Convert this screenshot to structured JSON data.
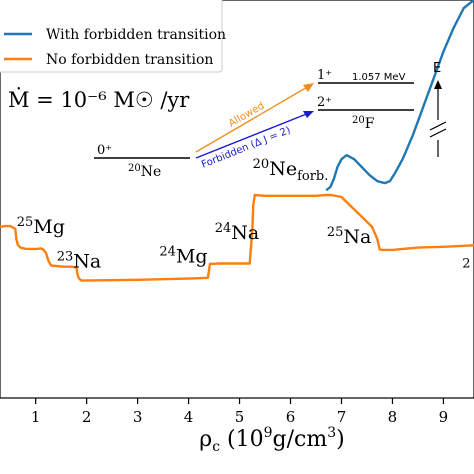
{
  "chart_data": {
    "type": "line",
    "xlabel": "ρ_c (10^9 g/cm^3)",
    "xlim": [
      0.3,
      9.6
    ],
    "ylim": [
      0.0,
      1.0
    ],
    "xticks": [
      1,
      2,
      3,
      4,
      5,
      6,
      7,
      8,
      9
    ],
    "legend_position": "top-left",
    "series": [
      {
        "name": "With forbidden transition",
        "color": "#1f77b4",
        "x": [
          6.7,
          6.78,
          6.85,
          6.92,
          7.0,
          7.1,
          7.25,
          7.4,
          7.55,
          7.7,
          7.85,
          7.95,
          8.05,
          8.2,
          8.4,
          8.6,
          8.8,
          9.0,
          9.2,
          9.4,
          9.6
        ],
        "y": [
          0.522,
          0.53,
          0.55,
          0.58,
          0.6,
          0.61,
          0.6,
          0.58,
          0.56,
          0.545,
          0.54,
          0.545,
          0.565,
          0.6,
          0.66,
          0.73,
          0.8,
          0.87,
          0.93,
          0.98,
          1.0
        ]
      },
      {
        "name": "No forbidden transition",
        "color": "#ff7f0e",
        "x": [
          0.3,
          0.4,
          0.5,
          0.6,
          0.62,
          0.65,
          0.7,
          0.8,
          1.0,
          1.1,
          1.15,
          1.2,
          1.25,
          1.3,
          1.55,
          1.7,
          1.8,
          1.82,
          1.85,
          1.9,
          3.0,
          4.0,
          4.38,
          4.4,
          4.42,
          4.6,
          5.0,
          5.2,
          5.25,
          5.27,
          5.3,
          5.5,
          6.0,
          6.5,
          6.7,
          6.8,
          7.0,
          7.2,
          7.4,
          7.6,
          7.7,
          7.75,
          7.8,
          8.0,
          8.5,
          9.0,
          9.5,
          9.6
        ],
        "y": [
          0.43,
          0.432,
          0.432,
          0.425,
          0.4,
          0.385,
          0.378,
          0.375,
          0.374,
          0.376,
          0.373,
          0.365,
          0.345,
          0.333,
          0.33,
          0.33,
          0.328,
          0.31,
          0.3,
          0.295,
          0.297,
          0.3,
          0.302,
          0.32,
          0.337,
          0.338,
          0.338,
          0.338,
          0.42,
          0.485,
          0.51,
          0.508,
          0.508,
          0.508,
          0.51,
          0.51,
          0.505,
          0.48,
          0.455,
          0.43,
          0.4,
          0.373,
          0.372,
          0.372,
          0.378,
          0.38,
          0.383,
          0.384
        ]
      }
    ],
    "annotations": {
      "mdot": "Ṁ = 10⁻⁶ M☉ /yr",
      "region_labels": [
        {
          "base": "Mg",
          "mass": "25",
          "x": 1.1,
          "y": 0.415
        },
        {
          "base": "Na",
          "mass": "23",
          "x": 1.85,
          "y": 0.328
        },
        {
          "base": "Mg",
          "mass": "24",
          "x": 3.9,
          "y": 0.34
        },
        {
          "base": "Na",
          "mass": "24",
          "x": 4.95,
          "y": 0.4
        },
        {
          "base": "Ne",
          "mass": "20",
          "sub": "forb.",
          "x": 6.0,
          "y": 0.56
        },
        {
          "base": "Na",
          "mass": "25",
          "x": 7.15,
          "y": 0.39
        },
        {
          "base": "",
          "mass": "2",
          "x": 9.45,
          "y": 0.31
        }
      ],
      "level_diagram": {
        "levels": [
          {
            "spin": "0⁺",
            "nucleus_mass": "20",
            "nucleus": "Ne"
          },
          {
            "spin": "1⁺",
            "energy": "1.057 MeV"
          },
          {
            "spin": "2⁺",
            "nucleus_mass": "20",
            "nucleus": "F"
          }
        ],
        "allowed_label": "Allowed",
        "forbidden_label": "Forbidden (Δ J = 2)",
        "axis_label": "E"
      }
    }
  }
}
